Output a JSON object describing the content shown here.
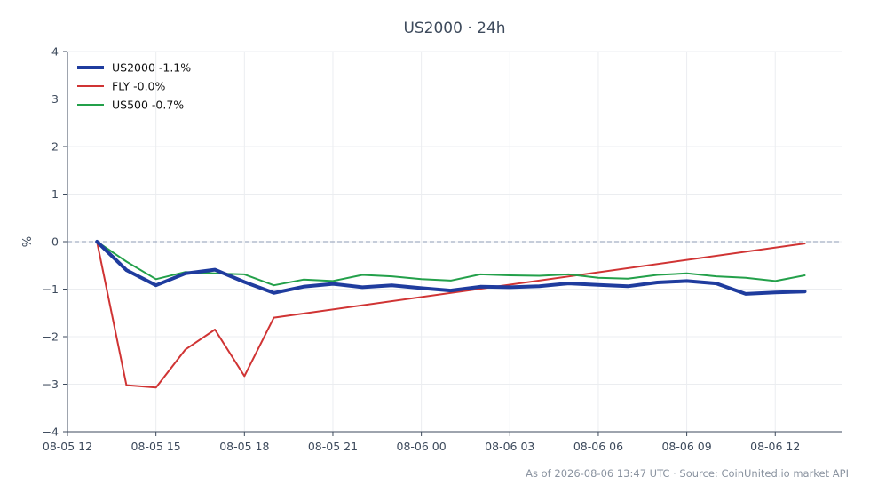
{
  "chart_data": {
    "type": "line",
    "title": "US2000 · 24h",
    "xlabel": "",
    "ylabel": "%",
    "ylim": [
      -4,
      4
    ],
    "yticks": [
      4,
      3,
      2,
      1,
      0,
      -1,
      -2,
      -3,
      -4
    ],
    "ytick_labels": [
      "4",
      "3",
      "2",
      "1",
      "0",
      "−1",
      "−2",
      "−3",
      "−4"
    ],
    "x_start": "08-05 12:00",
    "x_end": "08-06 14:15",
    "x_tick_labels": [
      "08-05 12",
      "08-05 15",
      "08-05 18",
      "08-05 21",
      "08-06 00",
      "08-06 03",
      "08-06 06",
      "08-06 09",
      "08-06 12"
    ],
    "x": [
      "08-05 13:00",
      "08-05 14:00",
      "08-05 15:00",
      "08-05 16:00",
      "08-05 17:00",
      "08-05 18:00",
      "08-05 19:00",
      "08-05 20:00",
      "08-05 21:00",
      "08-05 22:00",
      "08-05 23:00",
      "08-06 00:00",
      "08-06 01:00",
      "08-06 02:00",
      "08-06 03:00",
      "08-06 04:00",
      "08-06 05:00",
      "08-06 06:00",
      "08-06 07:00",
      "08-06 08:00",
      "08-06 09:00",
      "08-06 10:00",
      "08-06 11:00",
      "08-06 12:00",
      "08-06 13:00"
    ],
    "series": [
      {
        "name": "US2000 -1.1%",
        "color": "#1f3c9e",
        "values": [
          0,
          -0.6,
          -0.92,
          -0.67,
          -0.59,
          -0.85,
          -1.08,
          -0.95,
          -0.89,
          -0.96,
          -0.92,
          -0.98,
          -1.03,
          -0.95,
          -0.96,
          -0.94,
          -0.88,
          -0.91,
          -0.94,
          -0.86,
          -0.83,
          -0.88,
          -1.1,
          -1.07,
          -1.05
        ]
      },
      {
        "name": "FLY -0.0%",
        "color": "#d03434",
        "values": [
          0,
          -3.02,
          -3.07,
          -2.27,
          -1.85,
          -2.83,
          -1.6,
          null,
          null,
          null,
          null,
          null,
          null,
          null,
          null,
          null,
          null,
          null,
          null,
          null,
          null,
          null,
          null,
          null,
          -0.04
        ]
      },
      {
        "name": "US500 -0.7%",
        "color": "#23a04a",
        "values": [
          0,
          -0.42,
          -0.79,
          -0.64,
          -0.67,
          -0.69,
          -0.92,
          -0.8,
          -0.83,
          -0.7,
          -0.73,
          -0.79,
          -0.82,
          -0.69,
          -0.71,
          -0.72,
          -0.69,
          -0.76,
          -0.78,
          -0.7,
          -0.67,
          -0.73,
          -0.76,
          -0.83,
          -0.71
        ]
      }
    ],
    "reference_line": 0,
    "grid": true,
    "legend_position": "top-left",
    "footnote": "As of 2026-08-06 13:47 UTC · Source: CoinUnited.io market API"
  }
}
